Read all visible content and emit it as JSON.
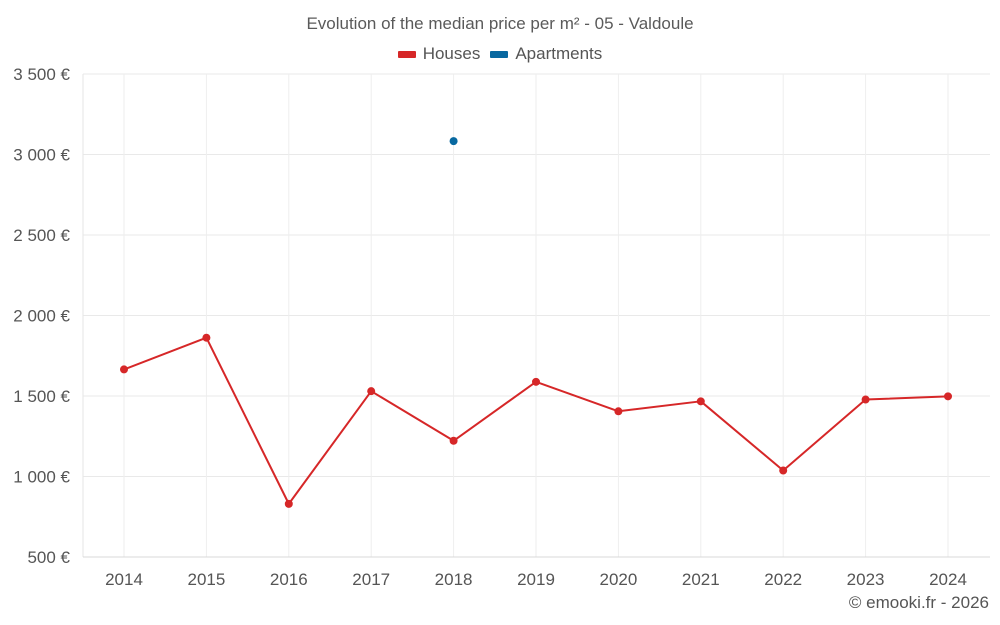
{
  "chart_data": {
    "type": "line",
    "title": "Evolution of the median price per m² - 05 - Valdoule",
    "categories": [
      "2014",
      "2015",
      "2016",
      "2017",
      "2018",
      "2019",
      "2020",
      "2021",
      "2022",
      "2023",
      "2024"
    ],
    "series": [
      {
        "name": "Houses",
        "color": "#d62728",
        "values": [
          1665,
          1862,
          830,
          1530,
          1222,
          1588,
          1405,
          1467,
          1037,
          1478,
          1498
        ]
      },
      {
        "name": "Apartments",
        "color": "#0868a0",
        "values": [
          null,
          null,
          null,
          null,
          3083,
          null,
          null,
          null,
          null,
          null,
          null
        ]
      }
    ],
    "y_ticks": [
      500,
      1000,
      1500,
      2000,
      2500,
      3000,
      3500
    ],
    "y_tick_labels": [
      "500 €",
      "1 000 €",
      "1 500 €",
      "2 000 €",
      "2 500 €",
      "3 000 €",
      "3 500 €"
    ],
    "ylim": [
      500,
      3500
    ],
    "xlabel": "",
    "ylabel": "",
    "grid": true,
    "legend_position": "top-center"
  },
  "credit": "© emooki.fr - 2026"
}
